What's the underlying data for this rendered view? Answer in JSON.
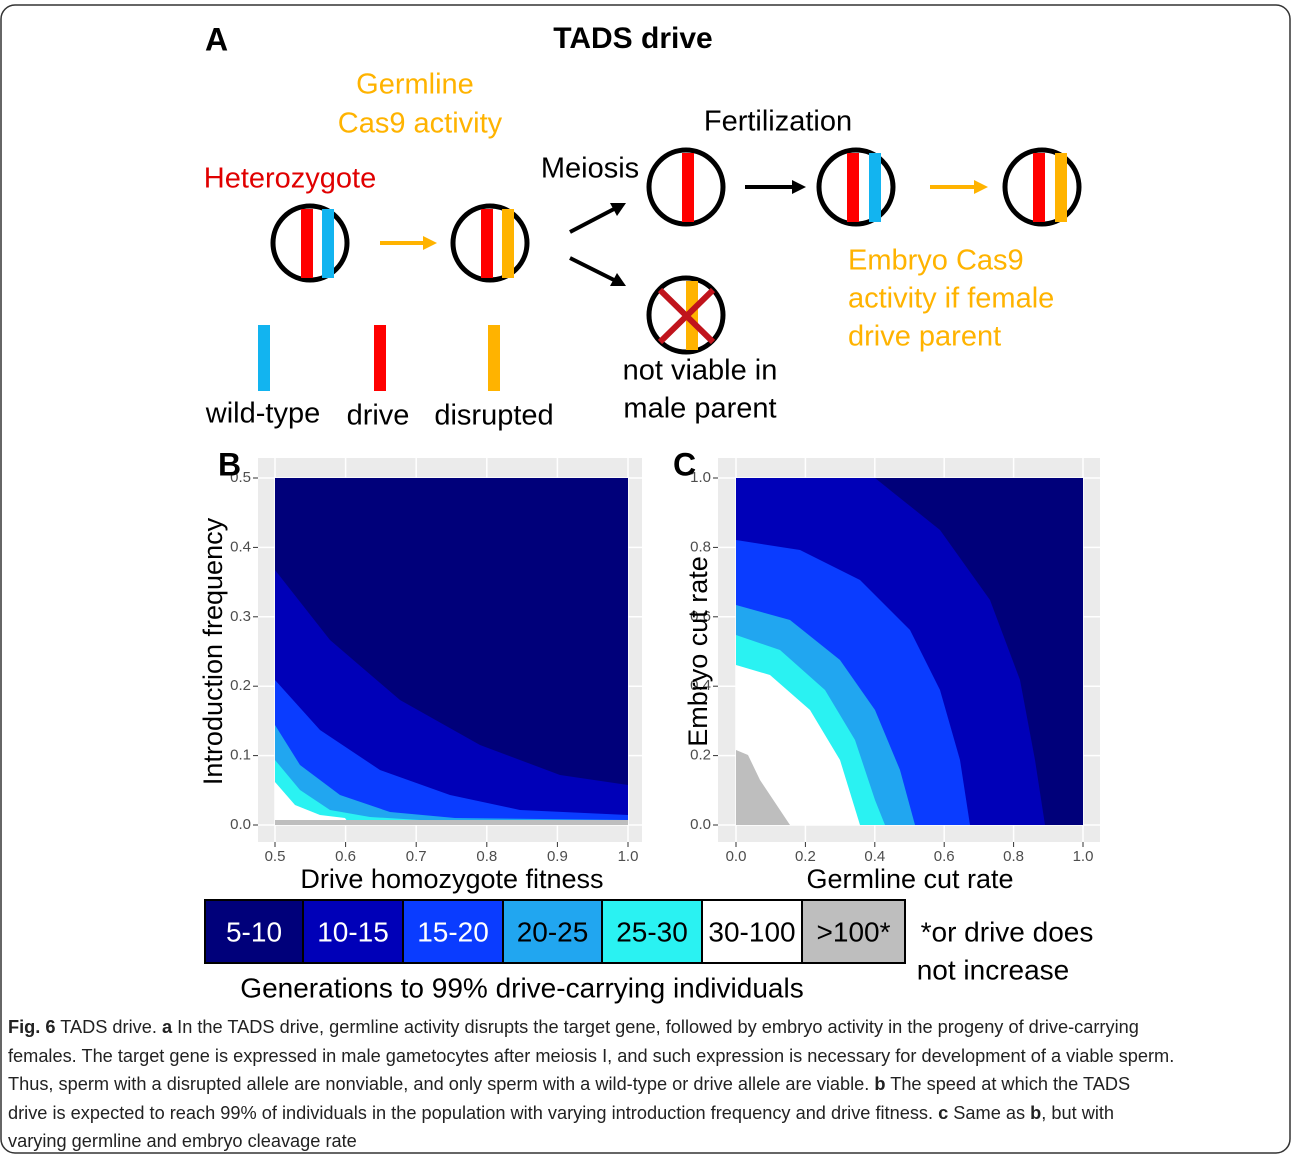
{
  "panel_a": {
    "letter": "A",
    "title": "TADS drive",
    "germline_1": "Germline",
    "germline_2": "Cas9 activity",
    "heterozygote": "Heterozygote",
    "meiosis": "Meiosis",
    "fertilization": "Fertilization",
    "not_viable_1": "not viable in",
    "not_viable_2": "male parent",
    "embryo_1": "Embryo Cas9",
    "embryo_2": "activity if female",
    "embryo_3": "drive parent",
    "allele_legend": [
      "wild-type",
      "drive",
      "disrupted"
    ]
  },
  "chart_data": [
    {
      "type": "heatmap",
      "letter": "B",
      "x_label": "Drive homozygote fitness",
      "y_label": "Introduction frequency",
      "xlim": [
        0.5,
        1
      ],
      "xticks": [
        0.5,
        0.6,
        0.7,
        0.8,
        0.9,
        {
          "value": 1,
          "label": "1.0"
        }
      ],
      "ylim": [
        0,
        0.5
      ],
      "yticks": [
        {
          "value": 0,
          "label": "0.0"
        },
        0.1,
        0.2,
        0.3,
        0.4,
        0.5
      ],
      "grid": true
    },
    {
      "type": "heatmap",
      "letter": "C",
      "x_label": "Germline cut rate",
      "y_label": "Embryo cut rate",
      "xlim": [
        0,
        1
      ],
      "xticks": [
        {
          "value": 0,
          "label": "0.0"
        },
        0.2,
        0.4,
        0.6,
        0.8,
        {
          "value": 1,
          "label": "1.0"
        }
      ],
      "ylim": [
        0,
        1
      ],
      "yticks": [
        {
          "value": 0,
          "label": "0.0"
        },
        0.2,
        0.4,
        0.6,
        0.8,
        {
          "value": 1,
          "label": "1.0"
        }
      ],
      "grid": true
    }
  ],
  "legend": {
    "items": [
      {
        "label": "5-10",
        "color": "#00007a"
      },
      {
        "label": "10-15",
        "color": "#0000b8"
      },
      {
        "label": "15-20",
        "color": "#0a3cff"
      },
      {
        "label": "20-25",
        "color": "#21a6f0"
      },
      {
        "label": "25-30",
        "color": "#2af2f2"
      },
      {
        "label": "30-100",
        "color": "#ffffff"
      },
      {
        "label": ">100*",
        "color": "#bebebe"
      }
    ],
    "note_1": "*or drive does",
    "note_2": "not increase",
    "title": "Generations to 99% drive-carrying individuals"
  },
  "caption": {
    "lines": [
      [
        {
          "text": "Fig. 6",
          "style": "bold"
        },
        {
          "text": " TADS drive. ",
          "style": "normal"
        },
        {
          "text": "a",
          "style": "bold"
        },
        {
          "text": " In the TADS drive, germline activity disrupts the target gene, followed by embryo activity in the progeny of drive-carrying",
          "style": "normal"
        }
      ],
      [
        {
          "text": "females. The target gene is expressed in male gametocytes after meiosis I, and such expression is necessary for development of a viable sperm.",
          "style": "normal"
        }
      ],
      [
        {
          "text": "Thus, sperm with a disrupted allele are nonviable, and only sperm with a wild-type or drive allele are viable. ",
          "style": "normal"
        },
        {
          "text": "b",
          "style": "bold"
        },
        {
          "text": " The speed at which the TADS",
          "style": "normal"
        }
      ],
      [
        {
          "text": "drive is expected to reach 99% of individuals in the population with varying introduction frequency and drive fitness. ",
          "style": "normal"
        },
        {
          "text": "c",
          "style": "bold"
        },
        {
          "text": " Same as ",
          "style": "normal"
        },
        {
          "text": "b",
          "style": "bold"
        },
        {
          "text": ", but with",
          "style": "normal"
        }
      ],
      [
        {
          "text": "varying germline and embryo cleavage rate",
          "style": "normal"
        }
      ]
    ]
  }
}
